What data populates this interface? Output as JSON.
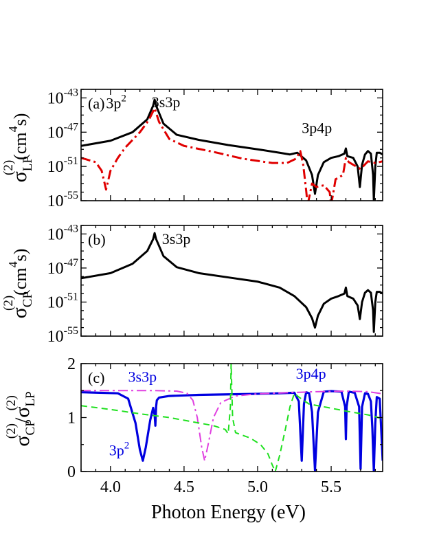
{
  "chart_data": [
    {
      "panel_label": "(a)",
      "type": "line",
      "scale": "log",
      "xlim": [
        3.8,
        5.85
      ],
      "ylim_exp": [
        -55,
        -42
      ],
      "ytick_exps": [
        -43,
        -47,
        -51,
        -55
      ],
      "ylabel_main": "σ",
      "ylabel_sub": "LP",
      "ylabel_sup": "(2)",
      "ylabel_unit": "(cm",
      "ylabel_unit_sup": "4",
      "ylabel_unit_tail": "s)",
      "annotations": [
        {
          "text": "3p",
          "sup": "2",
          "x": 3.97,
          "yexp": -44.2
        },
        {
          "text": "3s3p",
          "x": 4.28,
          "yexp": -44.1
        },
        {
          "text": "3p4p",
          "x": 5.3,
          "yexp": -47.1
        }
      ],
      "series": [
        {
          "color": "#000000",
          "style": "solid",
          "points": [
            [
              3.8,
              -48.6
            ],
            [
              4.0,
              -48.0
            ],
            [
              4.15,
              -47.0
            ],
            [
              4.25,
              -45.5
            ],
            [
              4.29,
              -43.9
            ],
            [
              4.3,
              -43.2
            ],
            [
              4.31,
              -43.9
            ],
            [
              4.36,
              -46.0
            ],
            [
              4.45,
              -47.3
            ],
            [
              4.6,
              -47.9
            ],
            [
              4.8,
              -48.5
            ],
            [
              5.0,
              -49.0
            ],
            [
              5.15,
              -49.4
            ],
            [
              5.22,
              -49.6
            ],
            [
              5.27,
              -49.4
            ],
            [
              5.33,
              -50.3
            ],
            [
              5.37,
              -52.0
            ],
            [
              5.39,
              -54.2
            ],
            [
              5.41,
              -52.0
            ],
            [
              5.45,
              -50.5
            ],
            [
              5.5,
              -50.0
            ],
            [
              5.55,
              -49.8
            ],
            [
              5.59,
              -49.5
            ],
            [
              5.6,
              -48.9
            ],
            [
              5.61,
              -49.8
            ],
            [
              5.65,
              -50.0
            ],
            [
              5.68,
              -51.0
            ],
            [
              5.695,
              -53.4
            ],
            [
              5.71,
              -50.8
            ],
            [
              5.73,
              -49.6
            ],
            [
              5.75,
              -49.2
            ],
            [
              5.77,
              -49.5
            ],
            [
              5.785,
              -52.0
            ],
            [
              5.79,
              -55.0
            ],
            [
              5.8,
              -51.0
            ],
            [
              5.81,
              -49.4
            ],
            [
              5.83,
              -49.4
            ],
            [
              5.85,
              -49.6
            ]
          ]
        },
        {
          "color": "#e00000",
          "style": "dashdot",
          "points": [
            [
              3.8,
              -50.0
            ],
            [
              3.9,
              -50.5
            ],
            [
              3.94,
              -51.5
            ],
            [
              3.97,
              -53.7
            ],
            [
              4.0,
              -51.5
            ],
            [
              4.05,
              -50.0
            ],
            [
              4.1,
              -48.8
            ],
            [
              4.2,
              -47.0
            ],
            [
              4.26,
              -45.6
            ],
            [
              4.3,
              -44.2
            ],
            [
              4.33,
              -45.8
            ],
            [
              4.4,
              -47.8
            ],
            [
              4.5,
              -48.6
            ],
            [
              4.7,
              -49.3
            ],
            [
              4.9,
              -50.1
            ],
            [
              5.1,
              -50.6
            ],
            [
              5.2,
              -50.6
            ],
            [
              5.26,
              -50.1
            ],
            [
              5.29,
              -49.2
            ],
            [
              5.31,
              -50.8
            ],
            [
              5.33,
              -53.8
            ],
            [
              5.34,
              -55.5
            ],
            [
              5.37,
              -53.0
            ],
            [
              5.4,
              -53.4
            ],
            [
              5.45,
              -53.2
            ],
            [
              5.49,
              -54.0
            ],
            [
              5.5,
              -55.5
            ],
            [
              5.53,
              -52.5
            ],
            [
              5.58,
              -52.0
            ],
            [
              5.6,
              -50.0
            ],
            [
              5.62,
              -50.5
            ],
            [
              5.65,
              -50.8
            ],
            [
              5.7,
              -51.3
            ],
            [
              5.75,
              -50.4
            ],
            [
              5.8,
              -50.6
            ],
            [
              5.85,
              -50.4
            ]
          ]
        }
      ]
    },
    {
      "panel_label": "(b)",
      "type": "line",
      "scale": "log",
      "xlim": [
        3.8,
        5.85
      ],
      "ylim_exp": [
        -55,
        -42
      ],
      "ytick_exps": [
        -43,
        -47,
        -51,
        -55
      ],
      "ylabel_main": "σ",
      "ylabel_sub": "CP",
      "ylabel_sup": "(2)",
      "ylabel_unit": "(cm",
      "ylabel_unit_sup": "4",
      "ylabel_unit_tail": "s)",
      "annotations": [
        {
          "text": "3s3p",
          "x": 4.35,
          "yexp": -44.2
        }
      ],
      "series": [
        {
          "color": "#000000",
          "style": "solid",
          "points": [
            [
              3.8,
              -48.2
            ],
            [
              4.0,
              -47.6
            ],
            [
              4.15,
              -46.5
            ],
            [
              4.25,
              -45.0
            ],
            [
              4.29,
              -43.6
            ],
            [
              4.3,
              -42.9
            ],
            [
              4.31,
              -43.6
            ],
            [
              4.36,
              -45.6
            ],
            [
              4.45,
              -46.9
            ],
            [
              4.6,
              -47.6
            ],
            [
              4.8,
              -48.1
            ],
            [
              5.0,
              -48.6
            ],
            [
              5.15,
              -49.3
            ],
            [
              5.25,
              -50.3
            ],
            [
              5.33,
              -51.6
            ],
            [
              5.37,
              -52.9
            ],
            [
              5.39,
              -54.0
            ],
            [
              5.41,
              -52.6
            ],
            [
              5.45,
              -51.2
            ],
            [
              5.5,
              -50.6
            ],
            [
              5.55,
              -50.3
            ],
            [
              5.59,
              -50.0
            ],
            [
              5.6,
              -49.3
            ],
            [
              5.61,
              -50.3
            ],
            [
              5.65,
              -50.6
            ],
            [
              5.68,
              -51.4
            ],
            [
              5.695,
              -53.0
            ],
            [
              5.71,
              -51.0
            ],
            [
              5.73,
              -49.9
            ],
            [
              5.75,
              -49.6
            ],
            [
              5.77,
              -49.9
            ],
            [
              5.785,
              -52.0
            ],
            [
              5.79,
              -54.5
            ],
            [
              5.8,
              -51.0
            ],
            [
              5.81,
              -49.8
            ],
            [
              5.83,
              -49.8
            ],
            [
              5.85,
              -50.0
            ]
          ]
        }
      ]
    },
    {
      "panel_label": "(c)",
      "type": "line",
      "scale": "linear",
      "xlim": [
        3.8,
        5.85
      ],
      "ylim": [
        0,
        2
      ],
      "yticks": [
        0,
        1,
        2
      ],
      "xticks": [
        4.0,
        4.5,
        5.0,
        5.5
      ],
      "xtick_labels": [
        "4.0",
        "4.5",
        "5.0",
        "5.5"
      ],
      "xlabel": "Photon Energy (eV)",
      "ylabel_parts": [
        "σ",
        "CP",
        "(2)",
        "/σ",
        "LP",
        "(2)"
      ],
      "annotations": [
        {
          "text": "3s3p",
          "x": 4.12,
          "y": 1.66,
          "color": "#0000e0"
        },
        {
          "text": "3p4p",
          "x": 5.26,
          "y": 1.72,
          "color": "#0000e0"
        },
        {
          "text": "3p",
          "sup": "2",
          "x": 3.99,
          "y": 0.3,
          "color": "#0000e0"
        }
      ],
      "series": [
        {
          "color": "#0000e0",
          "style": "solid",
          "width": 3.2,
          "points": [
            [
              3.8,
              1.47
            ],
            [
              4.05,
              1.45
            ],
            [
              4.12,
              1.35
            ],
            [
              4.17,
              0.9
            ],
            [
              4.2,
              0.4
            ],
            [
              4.22,
              0.2
            ],
            [
              4.24,
              0.45
            ],
            [
              4.27,
              0.95
            ],
            [
              4.29,
              1.18
            ],
            [
              4.3,
              1.05
            ],
            [
              4.305,
              0.85
            ],
            [
              4.31,
              1.2
            ],
            [
              4.315,
              1.32
            ],
            [
              4.33,
              1.37
            ],
            [
              4.4,
              1.4
            ],
            [
              4.6,
              1.42
            ],
            [
              4.8,
              1.43
            ],
            [
              5.0,
              1.44
            ],
            [
              5.15,
              1.45
            ],
            [
              5.25,
              1.46
            ],
            [
              5.28,
              1.3
            ],
            [
              5.3,
              0.2
            ],
            [
              5.315,
              1.25
            ],
            [
              5.33,
              1.47
            ],
            [
              5.35,
              1.45
            ],
            [
              5.37,
              1.1
            ],
            [
              5.39,
              0.02
            ],
            [
              5.41,
              1.1
            ],
            [
              5.45,
              1.48
            ],
            [
              5.5,
              1.49
            ],
            [
              5.57,
              1.48
            ],
            [
              5.595,
              1.2
            ],
            [
              5.6,
              0.6
            ],
            [
              5.605,
              1.2
            ],
            [
              5.62,
              1.48
            ],
            [
              5.66,
              1.46
            ],
            [
              5.69,
              1.2
            ],
            [
              5.7,
              0.05
            ],
            [
              5.71,
              1.2
            ],
            [
              5.73,
              1.45
            ],
            [
              5.75,
              1.44
            ],
            [
              5.77,
              1.3
            ],
            [
              5.78,
              0.8
            ],
            [
              5.79,
              0.0
            ],
            [
              5.8,
              0.9
            ],
            [
              5.81,
              1.38
            ],
            [
              5.83,
              1.35
            ],
            [
              5.845,
              0.5
            ],
            [
              5.85,
              0.2
            ]
          ]
        },
        {
          "color": "#e040e0",
          "style": "dashdot",
          "width": 2,
          "points": [
            [
              3.8,
              1.5
            ],
            [
              4.0,
              1.5
            ],
            [
              4.3,
              1.5
            ],
            [
              4.45,
              1.49
            ],
            [
              4.52,
              1.45
            ],
            [
              4.56,
              1.32
            ],
            [
              4.59,
              1.0
            ],
            [
              4.62,
              0.45
            ],
            [
              4.64,
              0.2
            ],
            [
              4.66,
              0.45
            ],
            [
              4.7,
              1.0
            ],
            [
              4.75,
              1.28
            ],
            [
              4.85,
              1.4
            ],
            [
              5.0,
              1.44
            ],
            [
              5.2,
              1.46
            ],
            [
              5.4,
              1.48
            ],
            [
              5.6,
              1.49
            ],
            [
              5.75,
              1.48
            ],
            [
              5.85,
              1.44
            ]
          ]
        },
        {
          "color": "#20e020",
          "style": "dashed",
          "width": 2,
          "points": [
            [
              3.8,
              1.22
            ],
            [
              4.0,
              1.15
            ],
            [
              4.2,
              1.07
            ],
            [
              4.4,
              1.0
            ],
            [
              4.6,
              0.9
            ],
            [
              4.7,
              0.85
            ],
            [
              4.78,
              0.78
            ],
            [
              4.8,
              0.7
            ],
            [
              4.815,
              1.2
            ],
            [
              4.82,
              2.0
            ],
            [
              4.83,
              1.0
            ],
            [
              4.85,
              0.72
            ],
            [
              4.95,
              0.62
            ],
            [
              5.02,
              0.5
            ],
            [
              5.07,
              0.33
            ],
            [
              5.1,
              0.12
            ],
            [
              5.12,
              0.0
            ],
            [
              5.15,
              0.3
            ],
            [
              5.19,
              0.8
            ],
            [
              5.22,
              1.2
            ],
            [
              5.25,
              1.45
            ],
            [
              5.28,
              1.38
            ],
            [
              5.35,
              1.25
            ],
            [
              5.45,
              1.2
            ],
            [
              5.6,
              1.12
            ],
            [
              5.75,
              1.05
            ],
            [
              5.85,
              0.98
            ]
          ]
        }
      ]
    }
  ]
}
